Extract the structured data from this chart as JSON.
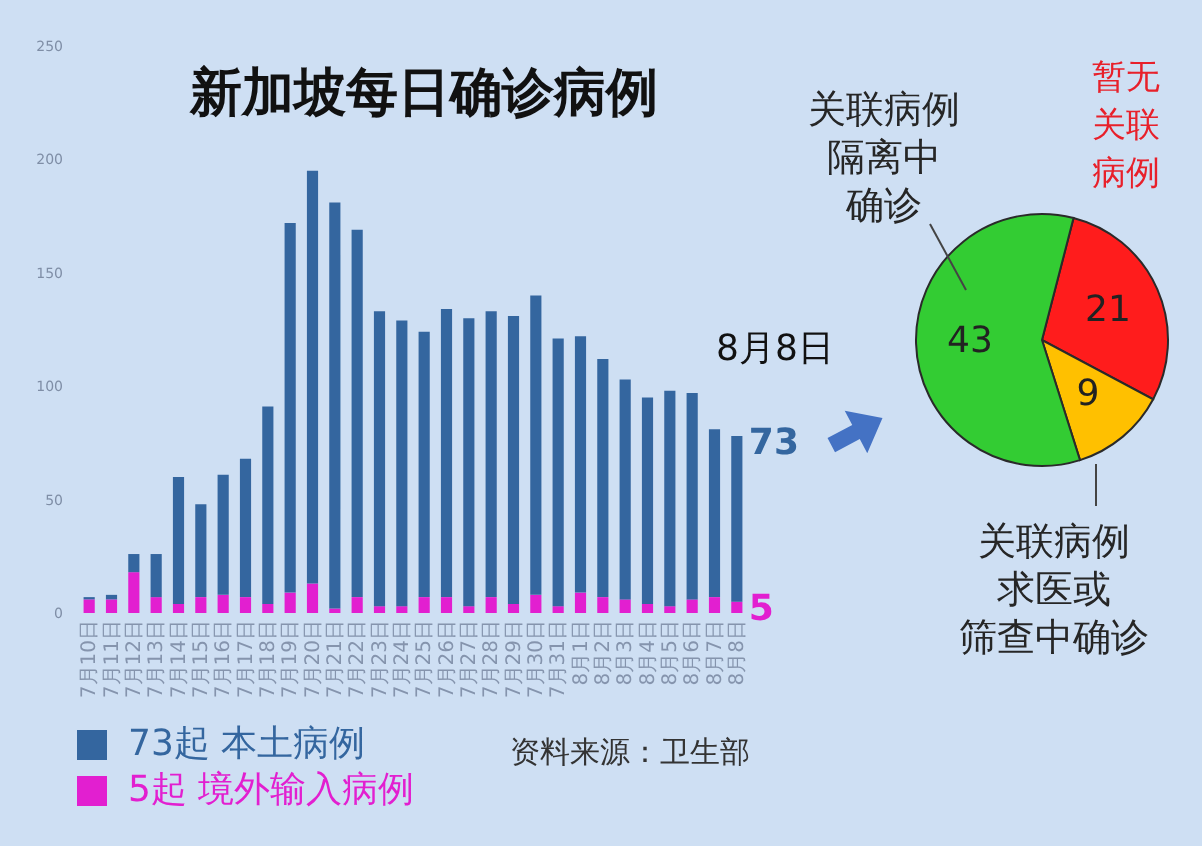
{
  "chart_data": [
    {
      "type": "bar",
      "title": "新加坡每日确诊病例",
      "stacked": true,
      "categories": [
        "7月10日",
        "7月11日",
        "7月12日",
        "7月13日",
        "7月14日",
        "7月15日",
        "7月16日",
        "7月17日",
        "7月18日",
        "7月19日",
        "7月20日",
        "7月21日",
        "7月22日",
        "7月23日",
        "7月24日",
        "7月25日",
        "7月26日",
        "7月27日",
        "7月28日",
        "7月29日",
        "7月30日",
        "7月31日",
        "8月1日",
        "8月2日",
        "8月3日",
        "8月4日",
        "8月5日",
        "8月6日",
        "8月7日",
        "8月8日"
      ],
      "series": [
        {
          "name": "5起 境外输入病例",
          "color": "#e21fd0",
          "values": [
            6,
            6,
            18,
            7,
            4,
            7,
            8,
            7,
            4,
            9,
            13,
            2,
            7,
            3,
            3,
            7,
            7,
            3,
            7,
            4,
            8,
            3,
            9,
            7,
            6,
            4,
            3,
            6,
            7,
            5
          ],
          "value_labels": [
            null,
            null,
            null,
            null,
            null,
            null,
            null,
            null,
            null,
            null,
            null,
            null,
            null,
            null,
            null,
            null,
            null,
            null,
            null,
            null,
            null,
            null,
            null,
            null,
            null,
            null,
            null,
            null,
            null,
            "5"
          ]
        },
        {
          "name": "73起 本土病例",
          "color": "#34669f",
          "values": [
            1,
            2,
            8,
            19,
            56,
            41,
            53,
            61,
            87,
            163,
            182,
            179,
            162,
            130,
            126,
            117,
            127,
            127,
            126,
            127,
            132,
            118,
            113,
            105,
            97,
            91,
            95,
            91,
            74,
            73
          ],
          "value_labels": [
            null,
            null,
            null,
            null,
            null,
            null,
            null,
            null,
            null,
            null,
            null,
            null,
            null,
            null,
            null,
            null,
            null,
            null,
            null,
            null,
            null,
            null,
            null,
            null,
            null,
            null,
            null,
            null,
            null,
            "73"
          ]
        }
      ],
      "ylim": [
        0,
        250
      ],
      "yticks": [
        0,
        50,
        100,
        150,
        200,
        250
      ],
      "legend": "bottom left",
      "annotations": [
        "8月8日",
        "资料来源：卫生部"
      ]
    },
    {
      "type": "pie",
      "categories": [
        "暂无关联病例",
        "关联病例求医或筛查中确诊",
        "关联病例隔离中确诊"
      ],
      "values": [
        21,
        9,
        43
      ],
      "colors": [
        "#ff1c1c",
        "#ffc000",
        "#33cc33"
      ],
      "data_labels": true
    }
  ]
}
